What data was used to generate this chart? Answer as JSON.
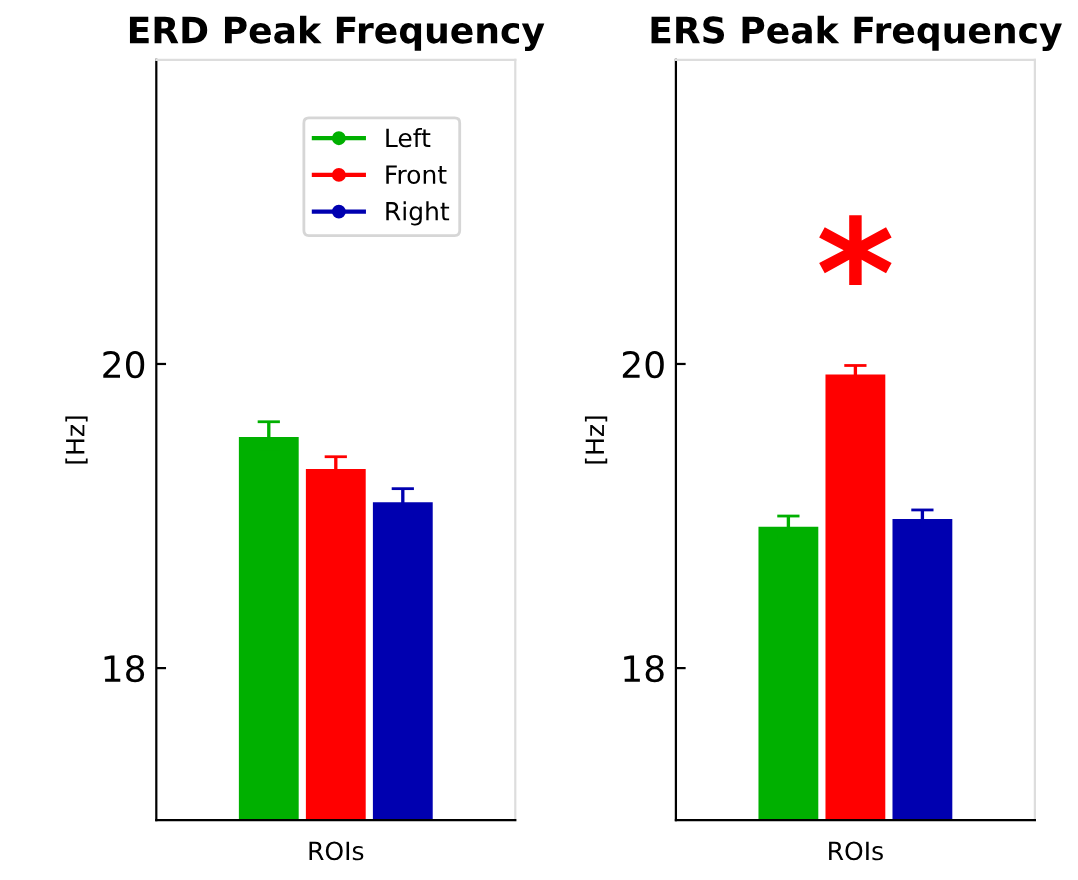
{
  "chart_data": [
    {
      "type": "bar",
      "title": "ERD Peak Frequency",
      "xlabel": "ROIs",
      "ylabel": "[Hz]",
      "categories": [
        null
      ],
      "ylim": [
        17,
        22
      ],
      "yticks": [
        18,
        20
      ],
      "legend": "top right",
      "grid": false,
      "series": [
        {
          "name": "Left",
          "color": "#00b000",
          "values": [
            19.52
          ],
          "errors": [
            0.1
          ]
        },
        {
          "name": "Front",
          "color": "#ff0000",
          "values": [
            19.31
          ],
          "errors": [
            0.08
          ]
        },
        {
          "name": "Right",
          "color": "#0000b0",
          "values": [
            19.09
          ],
          "errors": [
            0.09
          ]
        }
      ]
    },
    {
      "type": "bar",
      "title": "ERS Peak Frequency",
      "xlabel": "ROIs",
      "ylabel": "[Hz]",
      "categories": [
        null,
        null,
        null
      ],
      "ylim": [
        17,
        22
      ],
      "yticks": [
        18,
        20
      ],
      "legend": false,
      "grid": false,
      "annotations": [
        "*"
      ],
      "values": [
        18.93,
        19.93,
        18.98
      ],
      "errors": [
        0.07,
        0.06,
        0.06
      ],
      "colors": [
        "#00b000",
        "#ff0000",
        "#0000b0"
      ]
    }
  ]
}
